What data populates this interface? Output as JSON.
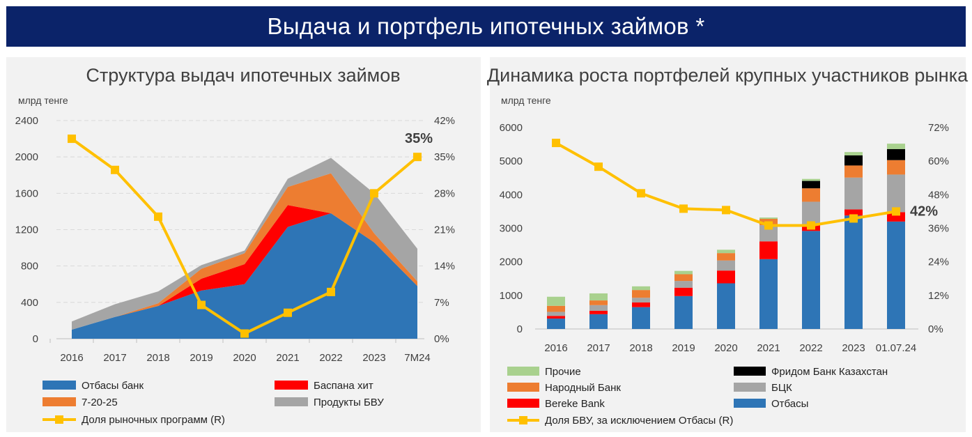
{
  "page": {
    "title": "Выдача и портфель ипотечных займов *"
  },
  "chart_data": [
    {
      "type": "area",
      "title": "Структура выдач ипотечных займов",
      "unit_left": "млрд тенге",
      "categories": [
        "2016",
        "2017",
        "2018",
        "2019",
        "2020",
        "2021",
        "2022",
        "2023",
        "7М24"
      ],
      "ylim": [
        0,
        2400
      ],
      "y_ticks": [
        0,
        400,
        800,
        1200,
        1600,
        2000,
        2400
      ],
      "y2lim": [
        0,
        42
      ],
      "y2_ticks": [
        "0%",
        "7%",
        "14%",
        "21%",
        "28%",
        "35%",
        "42%"
      ],
      "series": [
        {
          "name": "Отбасы банк",
          "color": "#2e75b6",
          "kind": "area",
          "values": [
            100,
            240,
            360,
            530,
            600,
            1230,
            1380,
            1060,
            580
          ]
        },
        {
          "name": "Баспана хит",
          "color": "#ff0000",
          "kind": "area",
          "values": [
            0,
            0,
            0,
            130,
            220,
            240,
            0,
            0,
            0
          ]
        },
        {
          "name": "7-20-25",
          "color": "#ed7d31",
          "kind": "area",
          "values": [
            0,
            0,
            30,
            110,
            120,
            200,
            440,
            100,
            50
          ]
        },
        {
          "name": "Продукты БВУ",
          "color": "#a5a5a5",
          "kind": "area",
          "values": [
            90,
            140,
            130,
            40,
            30,
            90,
            170,
            440,
            360
          ]
        },
        {
          "name": "Доля рыночных программ (R)",
          "color": "#ffc000",
          "kind": "line",
          "axis": "right",
          "values": [
            38.5,
            32.5,
            23.5,
            6.5,
            1.0,
            5.0,
            9.0,
            28.0,
            35.0
          ]
        }
      ],
      "annotation": "35%"
    },
    {
      "type": "bar",
      "title": "Динамика роста портфелей крупных участников рынка",
      "unit_left": "млрд тенге",
      "categories": [
        "2016",
        "2017",
        "2018",
        "2019",
        "2020",
        "2021",
        "2022",
        "2023",
        "01.07.24"
      ],
      "ylim": [
        0,
        6000
      ],
      "y_ticks": [
        0,
        1000,
        2000,
        3000,
        4000,
        5000,
        6000
      ],
      "y2lim": [
        0,
        72
      ],
      "y2_ticks": [
        "0%",
        "12%",
        "24%",
        "36%",
        "48%",
        "60%",
        "72%"
      ],
      "series": [
        {
          "name": "Отбасы",
          "color": "#2e75b6",
          "values": [
            310,
            440,
            650,
            980,
            1360,
            2080,
            2920,
            3380,
            3200
          ]
        },
        {
          "name": "Bereke Bank",
          "color": "#ff0000",
          "values": [
            80,
            100,
            140,
            250,
            380,
            530,
            170,
            180,
            280
          ]
        },
        {
          "name": "БЦК",
          "color": "#a5a5a5",
          "values": [
            120,
            170,
            140,
            200,
            300,
            480,
            700,
            950,
            1120
          ]
        },
        {
          "name": "Народный Банк",
          "color": "#ed7d31",
          "values": [
            180,
            140,
            230,
            200,
            220,
            190,
            400,
            360,
            430
          ]
        },
        {
          "name": "Фридом Банк Казахстан",
          "color": "#000000",
          "values": [
            0,
            0,
            0,
            0,
            0,
            0,
            220,
            300,
            330
          ]
        },
        {
          "name": "Прочие",
          "color": "#a9d18e",
          "values": [
            270,
            210,
            110,
            100,
            100,
            40,
            60,
            100,
            160
          ]
        },
        {
          "name": "Доля  БВУ, за исключением Отбасы (R)",
          "color": "#ffc000",
          "kind": "line",
          "axis": "right",
          "values": [
            66.5,
            58.0,
            48.5,
            43.0,
            42.5,
            37.0,
            37.0,
            39.5,
            42.0
          ]
        }
      ],
      "annotation": "42%"
    }
  ]
}
